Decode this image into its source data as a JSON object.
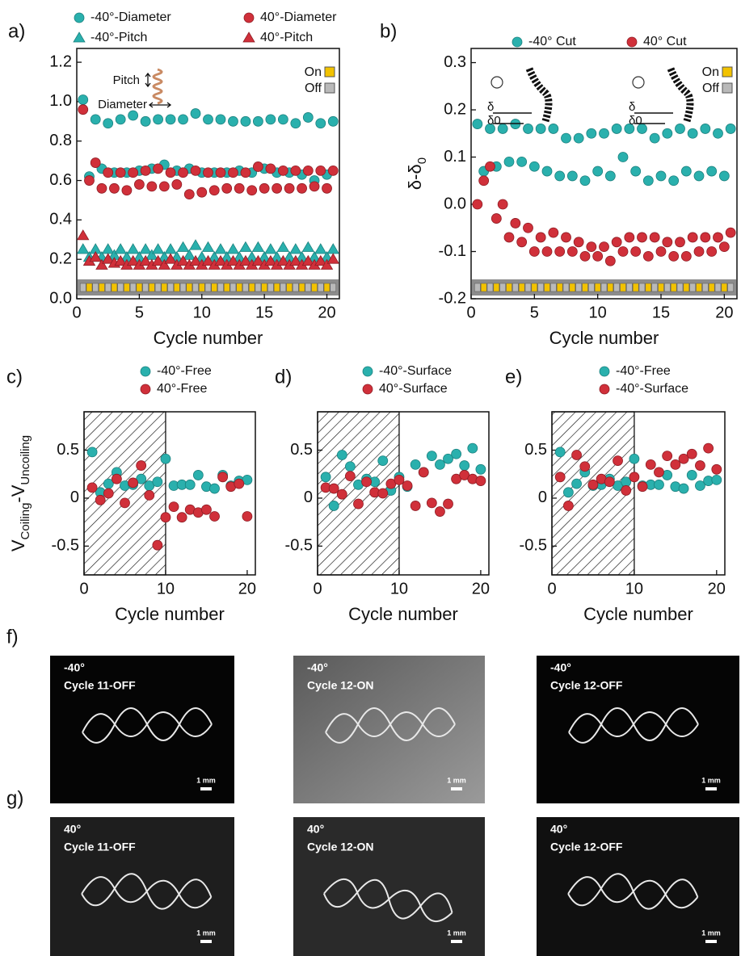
{
  "chart_data": [
    {
      "type": "scatter",
      "label": "a)",
      "xlabel": "Cycle number",
      "x": [
        0.5,
        1,
        1.5,
        2,
        2.5,
        3,
        3.5,
        4,
        4.5,
        5,
        5.5,
        6,
        6.5,
        7,
        7.5,
        8,
        8.5,
        9,
        9.5,
        10,
        10.5,
        11,
        11.5,
        12,
        12.5,
        13,
        13.5,
        14,
        14.5,
        15,
        15.5,
        16,
        16.5,
        17,
        17.5,
        18,
        18.5,
        19,
        19.5,
        20,
        20.5
      ],
      "xlim": [
        0,
        21
      ],
      "xticks": [
        0,
        5,
        10,
        15,
        20
      ],
      "ylim": [
        0,
        1.27
      ],
      "yticks": [
        {
          "value": 0,
          "label": "0.0"
        },
        0.2,
        0.4,
        0.6,
        0.8,
        {
          "value": 1,
          "label": "1.0"
        },
        1.2
      ],
      "state_labels": [
        "On",
        "Off"
      ],
      "annotations": [
        "Pitch",
        "Diameter"
      ],
      "series": [
        {
          "name": "-40°-Diameter",
          "color": "#2ab0ad",
          "marker": "circle",
          "values": [
            1.01,
            0.62,
            0.91,
            0.66,
            0.89,
            0.64,
            0.91,
            0.64,
            0.93,
            0.65,
            0.9,
            0.66,
            0.91,
            0.68,
            0.91,
            0.65,
            0.91,
            0.66,
            0.94,
            0.64,
            0.91,
            0.64,
            0.91,
            0.64,
            0.9,
            0.65,
            0.9,
            0.64,
            0.9,
            0.66,
            0.91,
            0.64,
            0.91,
            0.64,
            0.89,
            0.63,
            0.92,
            0.6,
            0.89,
            0.63,
            0.9
          ]
        },
        {
          "name": "40°-Diameter",
          "color": "#d0303a",
          "marker": "circle",
          "values": [
            0.96,
            0.6,
            0.69,
            0.56,
            0.64,
            0.56,
            0.64,
            0.55,
            0.64,
            0.58,
            0.65,
            0.57,
            0.66,
            0.57,
            0.64,
            0.58,
            0.64,
            0.53,
            0.65,
            0.54,
            0.64,
            0.55,
            0.64,
            0.56,
            0.64,
            0.56,
            0.64,
            0.55,
            0.67,
            0.56,
            0.66,
            0.56,
            0.65,
            0.56,
            0.65,
            0.56,
            0.65,
            0.57,
            0.65,
            0.56,
            0.65
          ]
        },
        {
          "name": "-40°-Pitch",
          "color": "#2ab0ad",
          "marker": "triangle",
          "values": [
            0.25,
            0.21,
            0.25,
            0.21,
            0.25,
            0.22,
            0.25,
            0.21,
            0.25,
            0.21,
            0.25,
            0.22,
            0.25,
            0.21,
            0.25,
            0.21,
            0.26,
            0.22,
            0.27,
            0.21,
            0.26,
            0.21,
            0.25,
            0.21,
            0.25,
            0.21,
            0.26,
            0.21,
            0.26,
            0.21,
            0.25,
            0.21,
            0.26,
            0.21,
            0.25,
            0.21,
            0.26,
            0.21,
            0.25,
            0.21,
            0.25
          ]
        },
        {
          "name": "40°-Pitch",
          "color": "#d0303a",
          "marker": "triangle",
          "values": [
            0.32,
            0.19,
            0.21,
            0.17,
            0.2,
            0.18,
            0.19,
            0.17,
            0.19,
            0.17,
            0.19,
            0.17,
            0.19,
            0.17,
            0.2,
            0.17,
            0.19,
            0.17,
            0.19,
            0.17,
            0.19,
            0.17,
            0.19,
            0.17,
            0.19,
            0.17,
            0.19,
            0.17,
            0.19,
            0.17,
            0.19,
            0.17,
            0.19,
            0.17,
            0.19,
            0.17,
            0.19,
            0.17,
            0.19,
            0.17,
            0.2
          ]
        }
      ]
    },
    {
      "type": "scatter",
      "label": "b)",
      "xlabel": "Cycle number",
      "ylabel": [
        "δ-δ",
        "0"
      ],
      "x": [
        0.5,
        1,
        1.5,
        2,
        2.5,
        3,
        3.5,
        4,
        4.5,
        5,
        5.5,
        6,
        6.5,
        7,
        7.5,
        8,
        8.5,
        9,
        9.5,
        10,
        10.5,
        11,
        11.5,
        12,
        12.5,
        13,
        13.5,
        14,
        14.5,
        15,
        15.5,
        16,
        16.5,
        17,
        17.5,
        18,
        18.5,
        19,
        19.5,
        20,
        20.5
      ],
      "xlim": [
        0,
        21
      ],
      "xticks": [
        0,
        5,
        10,
        15,
        20
      ],
      "ylim": [
        -0.2,
        0.33
      ],
      "yticks": [
        -0.2,
        -0.1,
        {
          "value": 0,
          "label": "0.0"
        },
        0.1,
        0.2,
        0.3
      ],
      "state_labels": [
        "On",
        "Off"
      ],
      "annotations": [
        "δ",
        "δ0",
        "δ",
        "δ0"
      ],
      "series": [
        {
          "name": "-40° Cut",
          "color": "#2ab0ad",
          "marker": "circle",
          "values": [
            0.17,
            0.07,
            0.16,
            0.08,
            0.16,
            0.09,
            0.17,
            0.09,
            0.16,
            0.08,
            0.16,
            0.07,
            0.16,
            0.06,
            0.14,
            0.06,
            0.14,
            0.05,
            0.15,
            0.07,
            0.15,
            0.06,
            0.16,
            0.1,
            0.16,
            0.07,
            0.16,
            0.05,
            0.14,
            0.06,
            0.15,
            0.05,
            0.16,
            0.07,
            0.15,
            0.06,
            0.16,
            0.07,
            0.15,
            0.06,
            0.16
          ]
        },
        {
          "name": "40° Cut",
          "color": "#d0303a",
          "marker": "circle",
          "values": [
            0.0,
            0.05,
            0.08,
            -0.03,
            0.0,
            -0.07,
            -0.04,
            -0.08,
            -0.05,
            -0.1,
            -0.07,
            -0.1,
            -0.06,
            -0.1,
            -0.07,
            -0.1,
            -0.08,
            -0.11,
            -0.09,
            -0.11,
            -0.09,
            -0.12,
            -0.08,
            -0.1,
            -0.07,
            -0.1,
            -0.07,
            -0.11,
            -0.07,
            -0.1,
            -0.08,
            -0.11,
            -0.08,
            -0.11,
            -0.07,
            -0.1,
            -0.07,
            -0.1,
            -0.07,
            -0.09,
            -0.06
          ]
        }
      ]
    },
    {
      "type": "scatter",
      "label": "c)",
      "xlabel": "Cycle number",
      "ylabel": [
        "V",
        "Coiling",
        "-V",
        "Uncoiling"
      ],
      "x": [
        1,
        2,
        3,
        4,
        5,
        6,
        7,
        8,
        9,
        10,
        11,
        12,
        13,
        14,
        15,
        16,
        17,
        18,
        19,
        20
      ],
      "xlim": [
        0,
        21
      ],
      "xticks": [
        0,
        10,
        20
      ],
      "ylim": [
        -0.8,
        0.9
      ],
      "yticks": [
        -0.5,
        0,
        0.5
      ],
      "shade": [
        0,
        10
      ],
      "series": [
        {
          "name": "-40°-Free",
          "color": "#2ab0ad",
          "marker": "circle",
          "values": [
            0.48,
            0.06,
            0.15,
            0.27,
            0.13,
            0.14,
            0.2,
            0.13,
            0.17,
            0.41,
            0.13,
            0.14,
            0.14,
            0.24,
            0.12,
            0.1,
            0.24,
            0.13,
            0.18,
            0.19
          ]
        },
        {
          "name": "40°-Free",
          "color": "#d0303a",
          "marker": "circle",
          "values": [
            0.11,
            -0.02,
            0.05,
            0.2,
            -0.05,
            0.16,
            0.34,
            0.03,
            -0.49,
            -0.2,
            -0.09,
            -0.2,
            -0.12,
            -0.15,
            -0.12,
            -0.19,
            0.22,
            0.12,
            0.15,
            -0.19
          ]
        }
      ]
    },
    {
      "type": "scatter",
      "label": "d)",
      "xlabel": "Cycle number",
      "x": [
        1,
        2,
        3,
        4,
        5,
        6,
        7,
        8,
        9,
        10,
        11,
        12,
        13,
        14,
        15,
        16,
        17,
        18,
        19,
        20
      ],
      "xlim": [
        0,
        21
      ],
      "xticks": [
        0,
        10,
        20
      ],
      "ylim": [
        -0.8,
        0.9
      ],
      "yticks": [
        -0.5,
        0,
        0.5
      ],
      "shade": [
        0,
        10
      ],
      "series": [
        {
          "name": "-40°-Surface",
          "color": "#2ab0ad",
          "marker": "circle",
          "values": [
            0.22,
            -0.08,
            0.45,
            0.33,
            0.14,
            0.2,
            0.17,
            0.39,
            0.08,
            0.22,
            0.12,
            0.35,
            0.27,
            0.44,
            0.35,
            0.41,
            0.46,
            0.34,
            0.52,
            0.3
          ]
        },
        {
          "name": "40°-Surface",
          "color": "#d0303a",
          "marker": "circle",
          "values": [
            0.11,
            0.1,
            0.04,
            0.23,
            -0.06,
            0.17,
            0.06,
            0.05,
            0.15,
            0.19,
            0.13,
            -0.08,
            0.27,
            -0.05,
            -0.14,
            -0.06,
            0.2,
            0.24,
            0.2,
            0.18
          ]
        }
      ]
    },
    {
      "type": "scatter",
      "label": "e)",
      "xlabel": "Cycle number",
      "x": [
        1,
        2,
        3,
        4,
        5,
        6,
        7,
        8,
        9,
        10,
        11,
        12,
        13,
        14,
        15,
        16,
        17,
        18,
        19,
        20
      ],
      "xlim": [
        0,
        21
      ],
      "xticks": [
        0,
        10,
        20
      ],
      "ylim": [
        -0.8,
        0.9
      ],
      "yticks": [
        -0.5,
        0,
        0.5
      ],
      "shade": [
        0,
        10
      ],
      "series": [
        {
          "name": "-40°-Free",
          "color": "#2ab0ad",
          "marker": "circle",
          "values": [
            0.48,
            0.06,
            0.15,
            0.27,
            0.13,
            0.14,
            0.2,
            0.13,
            0.17,
            0.41,
            0.13,
            0.14,
            0.14,
            0.24,
            0.12,
            0.1,
            0.24,
            0.13,
            0.18,
            0.19
          ]
        },
        {
          "name": "-40°-Surface",
          "color": "#d0303a",
          "marker": "circle",
          "values": [
            0.22,
            -0.08,
            0.45,
            0.33,
            0.14,
            0.2,
            0.17,
            0.39,
            0.08,
            0.22,
            0.12,
            0.35,
            0.27,
            0.44,
            0.35,
            0.41,
            0.46,
            0.34,
            0.52,
            0.3
          ]
        }
      ]
    }
  ],
  "figure_images": [
    {
      "label": "f)",
      "panels": [
        {
          "angle": "-40°",
          "caption": "Cycle 11-OFF",
          "scale": "1 mm"
        },
        {
          "angle": "-40°",
          "caption": "Cycle 12-ON",
          "scale": "1 mm"
        },
        {
          "angle": "-40°",
          "caption": "Cycle 12-OFF",
          "scale": "1 mm"
        }
      ]
    },
    {
      "label": "g)",
      "panels": [
        {
          "angle": "40°",
          "caption": "Cycle 11-OFF",
          "scale": "1 mm"
        },
        {
          "angle": "40°",
          "caption": "Cycle 12-ON",
          "scale": "1 mm"
        },
        {
          "angle": "40°",
          "caption": "Cycle 12-OFF",
          "scale": "1 mm"
        }
      ]
    }
  ]
}
